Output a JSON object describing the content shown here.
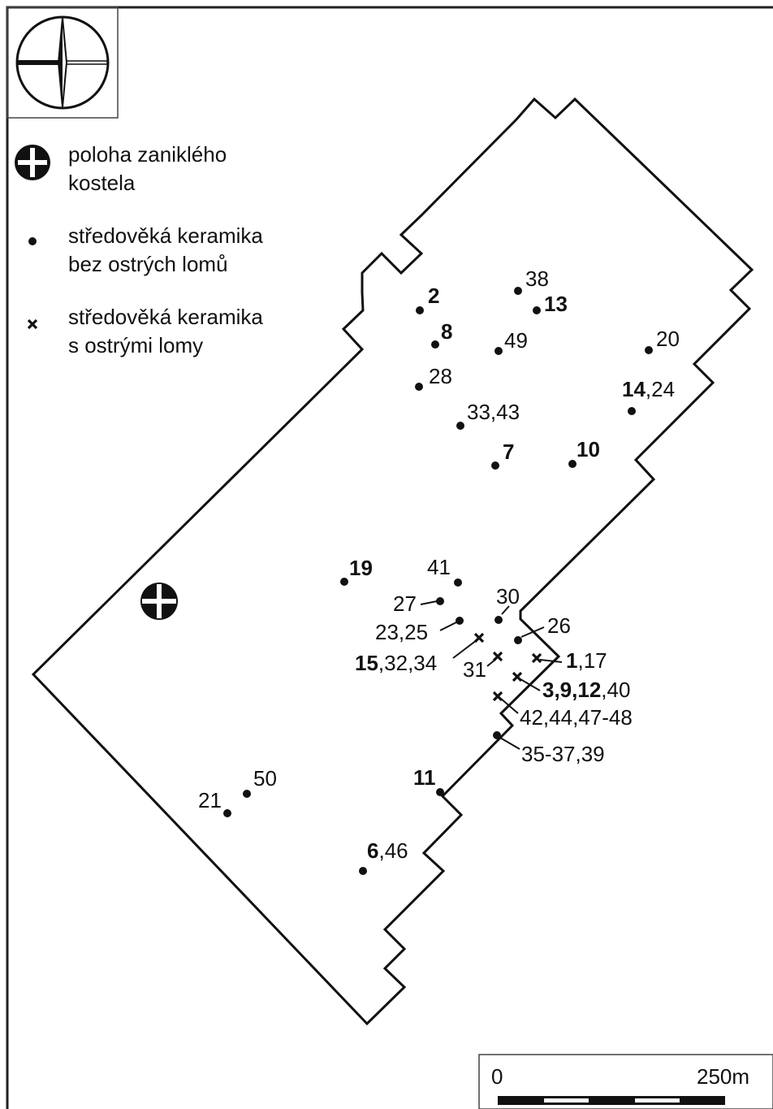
{
  "legend": [
    {
      "symbol": "church",
      "lines": [
        "poloha zaniklého",
        "kostela"
      ]
    },
    {
      "symbol": "dot",
      "lines": [
        "středověká keramika",
        "bez ostrých lomů"
      ]
    },
    {
      "symbol": "x",
      "lines": [
        "středověká keramika",
        "s ostrými lomy"
      ]
    }
  ],
  "points": [
    {
      "symbol": "dot",
      "bold": "2"
    },
    {
      "symbol": "dot",
      "text": "38"
    },
    {
      "symbol": "dot",
      "bold": "13"
    },
    {
      "symbol": "dot",
      "bold": "8"
    },
    {
      "symbol": "dot",
      "text": "49"
    },
    {
      "symbol": "dot",
      "text": "20"
    },
    {
      "symbol": "dot",
      "text": "28"
    },
    {
      "symbol": "dot",
      "bold": "14",
      "text": ",24"
    },
    {
      "symbol": "dot",
      "text": "33,43"
    },
    {
      "symbol": "dot",
      "bold": "7"
    },
    {
      "symbol": "dot",
      "bold": "10"
    },
    {
      "symbol": "dot",
      "bold": "19"
    },
    {
      "symbol": "dot",
      "text": "41"
    },
    {
      "symbol": "dot",
      "text": "27"
    },
    {
      "symbol": "dot",
      "text": "23,25"
    },
    {
      "symbol": "dot",
      "text": "30"
    },
    {
      "symbol": "x",
      "bold": "15",
      "text": ",32,34"
    },
    {
      "symbol": "dot",
      "text": "26"
    },
    {
      "symbol": "x",
      "text": "31"
    },
    {
      "symbol": "x",
      "bold": "1",
      "text": ",17"
    },
    {
      "symbol": "x",
      "bold": "3,9,12",
      "text": ",40"
    },
    {
      "symbol": "x",
      "text": "42,44,47-48"
    },
    {
      "symbol": "dot",
      "text": "35-37,39"
    },
    {
      "symbol": "dot",
      "bold": "11"
    },
    {
      "symbol": "dot",
      "text": "50"
    },
    {
      "symbol": "dot",
      "text": "21"
    },
    {
      "symbol": "dot",
      "bold": "6",
      "text": ",46"
    }
  ],
  "scale": {
    "start": "0",
    "end": "250m"
  }
}
